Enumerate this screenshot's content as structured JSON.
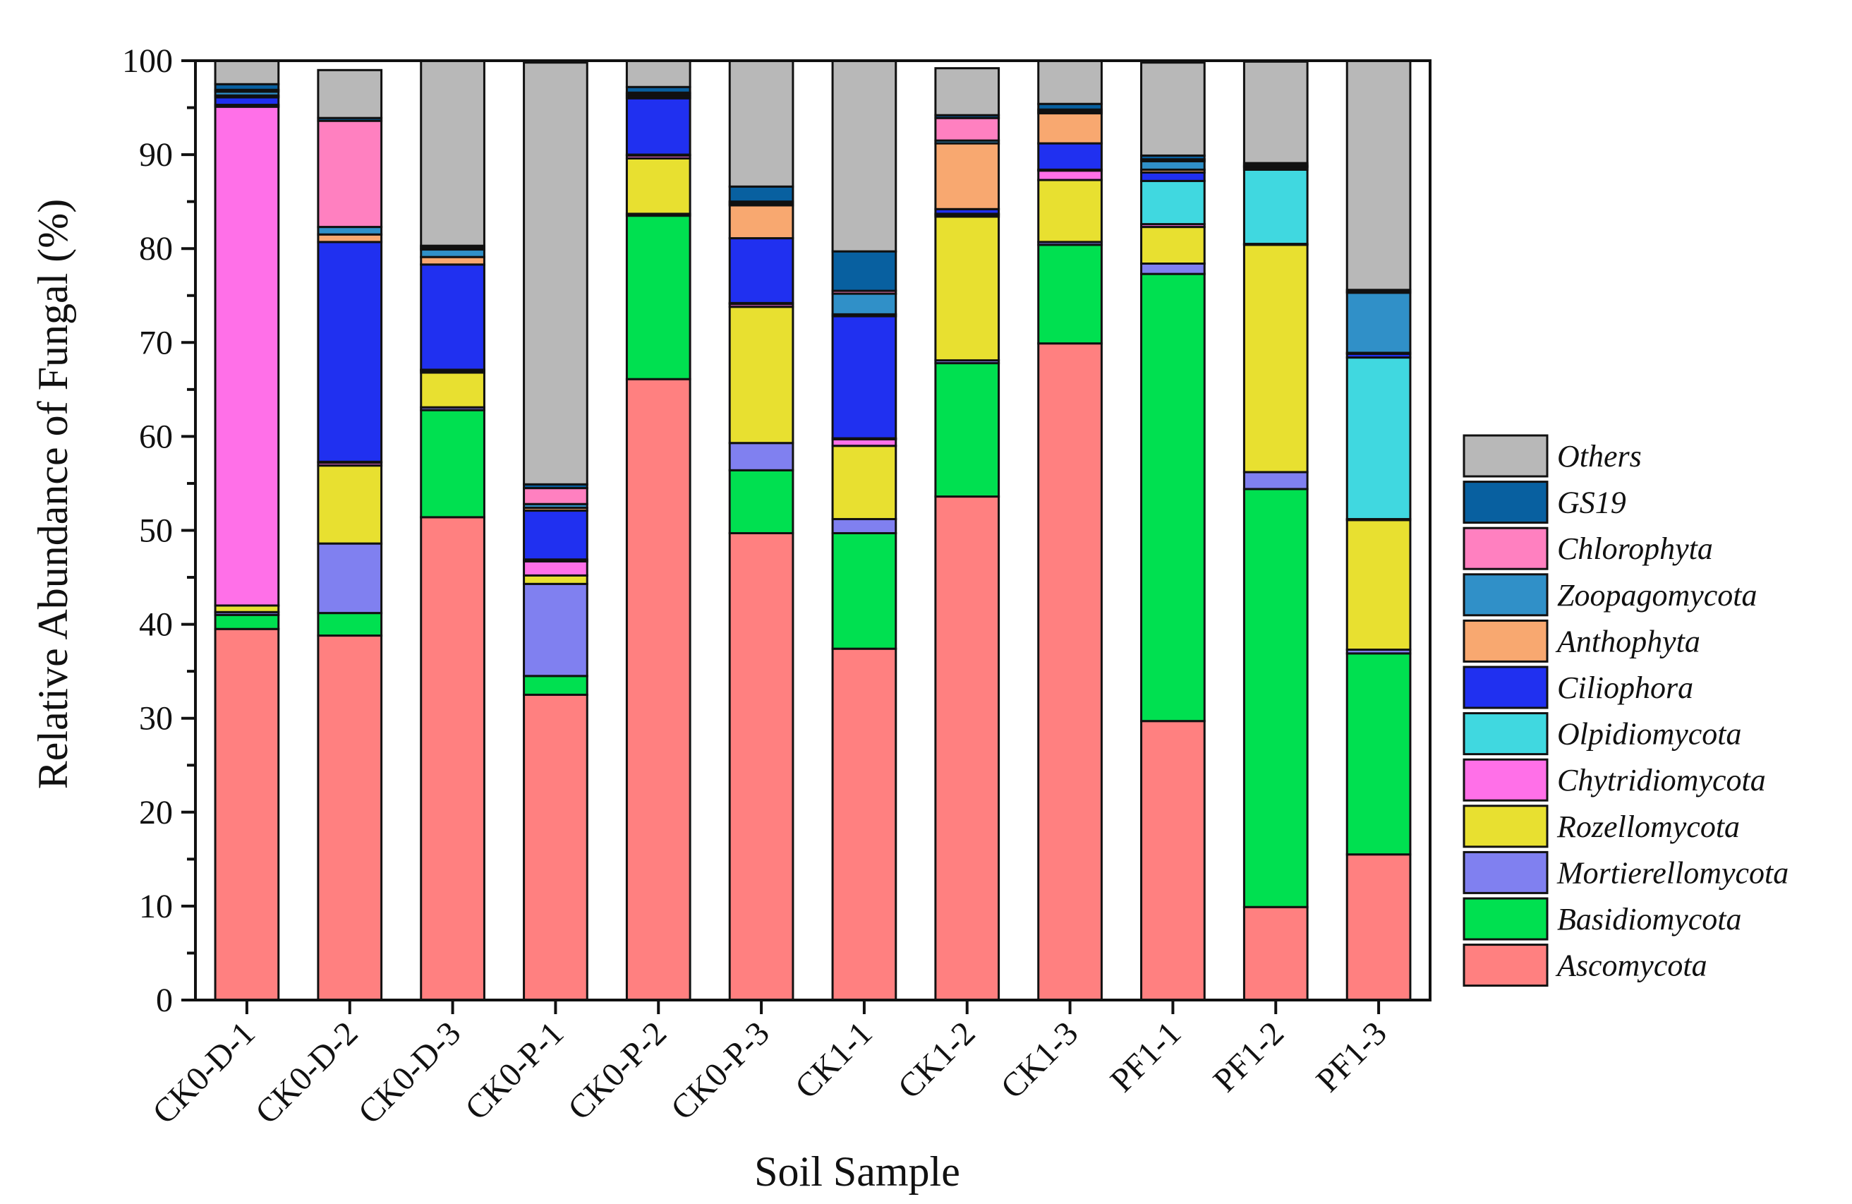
{
  "chart_data": {
    "type": "bar",
    "stacked": true,
    "title": "",
    "xlabel": "Soil Sample",
    "ylabel": "Relative Abundance of Fungal (%)",
    "ylim": [
      0,
      100
    ],
    "yticks": [
      "0",
      "10",
      "20",
      "30",
      "40",
      "50",
      "60",
      "70",
      "80",
      "90",
      "100"
    ],
    "categories": [
      "CK0-D-1",
      "CK0-D-2",
      "CK0-D-3",
      "CK0-P-1",
      "CK0-P-2",
      "CK0-P-3",
      "CK1-1",
      "CK1-2",
      "CK1-3",
      "PF1-1",
      "PF1-2",
      "PF1-3"
    ],
    "legend_position": "right",
    "series": [
      {
        "name": "Ascomycota",
        "color": "#ff8080",
        "values": [
          39.5,
          38.8,
          51.4,
          32.5,
          66.1,
          49.7,
          37.4,
          53.6,
          69.9,
          29.7,
          9.9,
          15.5
        ]
      },
      {
        "name": "Basidiomycota",
        "color": "#00e050",
        "values": [
          1.5,
          2.4,
          11.4,
          2.0,
          17.4,
          6.7,
          12.3,
          14.2,
          10.5,
          47.6,
          44.5,
          21.4
        ]
      },
      {
        "name": "Mortierellomycota",
        "color": "#8080f0",
        "values": [
          0.3,
          7.4,
          0.3,
          9.8,
          0.2,
          2.9,
          1.5,
          0.3,
          0.3,
          1.1,
          1.8,
          0.4
        ]
      },
      {
        "name": "Rozellomycota",
        "color": "#e8e030",
        "values": [
          0.7,
          8.3,
          3.7,
          0.9,
          5.9,
          14.5,
          7.8,
          15.3,
          6.6,
          3.9,
          24.2,
          13.8
        ]
      },
      {
        "name": "Chytridiomycota",
        "color": "#ff70e8",
        "values": [
          53.1,
          0.3,
          0.2,
          1.5,
          0.3,
          0.3,
          0.7,
          0.2,
          1.0,
          0.3,
          0.1,
          0.1
        ]
      },
      {
        "name": "Olpidiomycota",
        "color": "#40d8e0",
        "values": [
          0.2,
          0.1,
          0.1,
          0.2,
          0.1,
          0.1,
          0.1,
          0.1,
          0.1,
          4.6,
          7.9,
          17.2
        ]
      },
      {
        "name": "Ciliophora",
        "color": "#2030f0",
        "values": [
          0.8,
          23.4,
          11.2,
          5.2,
          6.0,
          6.9,
          13.0,
          0.5,
          2.8,
          0.9,
          0.2,
          0.4
        ]
      },
      {
        "name": "Anthophyta",
        "color": "#f8a870",
        "values": [
          0.2,
          0.8,
          0.8,
          0.3,
          0.2,
          3.5,
          0.2,
          7.0,
          3.2,
          0.3,
          0.1,
          0.1
        ]
      },
      {
        "name": "Zoopagomycota",
        "color": "#3090c8",
        "values": [
          0.4,
          0.8,
          0.8,
          0.4,
          0.2,
          0.2,
          2.2,
          0.3,
          0.2,
          0.9,
          0.1,
          6.4
        ]
      },
      {
        "name": "Chlorophyta",
        "color": "#ff80c0",
        "values": [
          0.2,
          11.3,
          0.2,
          1.7,
          0.2,
          0.2,
          0.3,
          2.4,
          0.2,
          0.2,
          0.1,
          0.1
        ]
      },
      {
        "name": "GS19",
        "color": "#0860a0",
        "values": [
          0.6,
          0.3,
          0.2,
          0.4,
          0.6,
          1.6,
          4.2,
          0.3,
          0.6,
          0.4,
          0.2,
          0.2
        ]
      },
      {
        "name": "Others",
        "color": "#b8b8b8",
        "values": [
          2.5,
          5.1,
          19.7,
          44.9,
          2.8,
          13.4,
          20.3,
          5.0,
          4.6,
          9.9,
          10.8,
          24.4
        ]
      }
    ]
  }
}
